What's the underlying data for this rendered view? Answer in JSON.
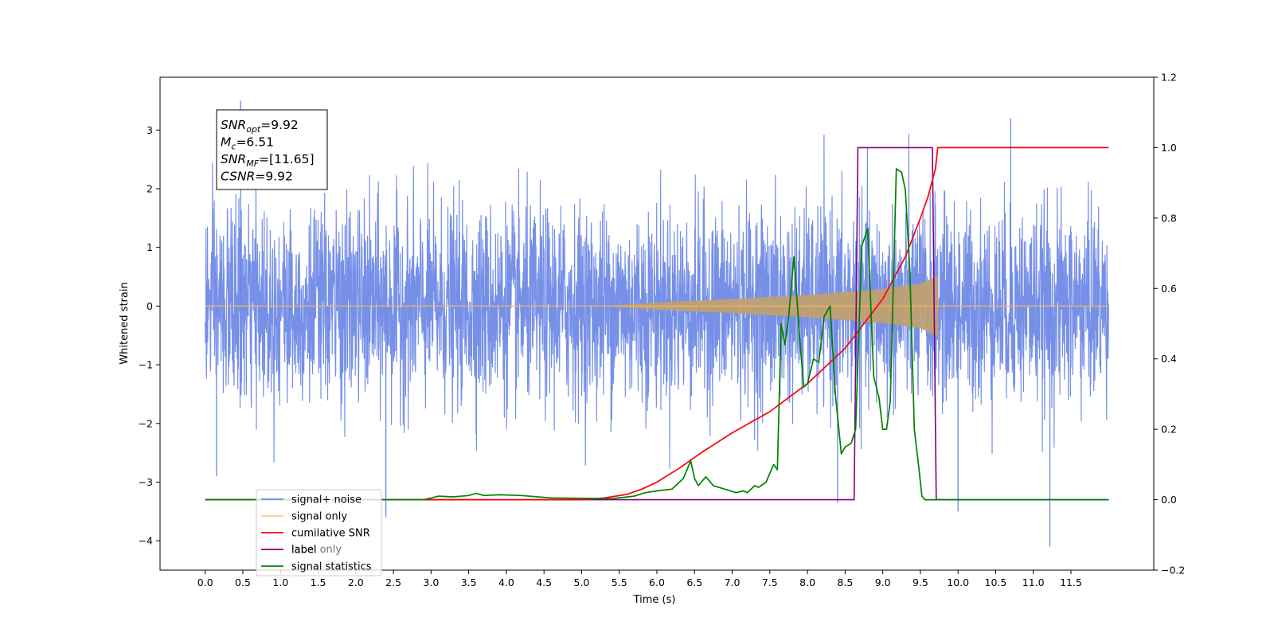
{
  "chart_data": {
    "type": "line",
    "xlabel": "Time (s)",
    "ylabel": "Whitened strain",
    "xlim": [
      -0.6,
      12.6
    ],
    "ylim_left": [
      -4.5,
      3.9
    ],
    "ylim_right": [
      -0.2,
      1.2
    ],
    "x_ticks": [
      "0.0",
      "0.5",
      "1.0",
      "1.5",
      "2.0",
      "2.5",
      "3.0",
      "3.5",
      "4.0",
      "4.5",
      "5.0",
      "5.5",
      "6.0",
      "6.5",
      "7.0",
      "7.5",
      "8.0",
      "8.5",
      "9.0",
      "9.5",
      "10.0",
      "10.5",
      "11.0",
      "11.5"
    ],
    "x_tick_values": [
      0,
      0.5,
      1,
      1.5,
      2,
      2.5,
      3,
      3.5,
      4,
      4.5,
      5,
      5.5,
      6,
      6.5,
      7,
      7.5,
      8,
      8.5,
      9,
      9.5,
      10,
      10.5,
      11,
      11.5
    ],
    "y_left_ticks": [
      3,
      2,
      1,
      0,
      -1,
      -2,
      -3,
      -4
    ],
    "y_left_tick_labels": [
      "3",
      "2",
      "1",
      "0",
      "−1",
      "−2",
      "−3",
      "−4"
    ],
    "y_right_ticks": [
      1.2,
      1.0,
      0.8,
      0.6,
      0.4,
      0.2,
      0.0,
      -0.2
    ],
    "y_right_tick_labels": [
      "1.2",
      "1.0",
      "0.8",
      "0.6",
      "0.4",
      "0.2",
      "0.0",
      "−0.2"
    ],
    "grid": false,
    "legend_position": "lower-left",
    "colors": {
      "signal_noise": "#6a87e6",
      "signal_only": "#f5b85a",
      "signal_only_fill": "#bfa071",
      "cumulative_snr": "#ff0000",
      "label": "#800080",
      "signal_statistics": "#008000"
    },
    "series": [
      {
        "name": "signal+ noise",
        "axis": "left",
        "note": "Gaussian whitened noise, visible amplitude about ±1.5 with spikes up to ~3.5 and down to ~-4.1",
        "x_range": [
          0,
          12.0
        ],
        "spikes": [
          [
            0.47,
            3.5
          ],
          [
            0.15,
            -2.9
          ],
          [
            10.7,
            3.2
          ],
          [
            11.22,
            -4.1
          ],
          [
            8.4,
            -3.35
          ],
          [
            10.0,
            -3.5
          ],
          [
            2.4,
            -3.6
          ]
        ]
      },
      {
        "name": "signal only",
        "axis": "left",
        "note": "chirp; zero until ~5.3 s, envelope grows to ~0.5 at 9.7 s, then drops to 0",
        "envelope": [
          [
            5.3,
            0.0
          ],
          [
            6.0,
            0.06
          ],
          [
            7.0,
            0.12
          ],
          [
            8.0,
            0.19
          ],
          [
            9.0,
            0.29
          ],
          [
            9.5,
            0.38
          ],
          [
            9.73,
            0.52
          ],
          [
            9.74,
            0.0
          ],
          [
            12.0,
            0.0
          ]
        ]
      },
      {
        "name": "cumilative SNR",
        "axis": "right",
        "x": [
          0,
          5.0,
          5.3,
          5.6,
          5.8,
          6.0,
          6.3,
          6.6,
          7.0,
          7.5,
          8.0,
          8.5,
          9.0,
          9.3,
          9.5,
          9.6,
          9.7,
          9.73,
          12.0
        ],
        "y": [
          0.0,
          0.0,
          0.005,
          0.015,
          0.03,
          0.05,
          0.09,
          0.135,
          0.19,
          0.25,
          0.33,
          0.43,
          0.57,
          0.69,
          0.8,
          0.86,
          0.94,
          1.0,
          1.0
        ]
      },
      {
        "name": "label",
        "axis": "right",
        "x": [
          0,
          8.62,
          8.67,
          9.66,
          9.71,
          12.0
        ],
        "y": [
          0,
          0,
          1,
          1,
          0,
          0
        ]
      },
      {
        "name": "signal statistics",
        "axis": "right",
        "x": [
          0,
          2.9,
          3.0,
          3.1,
          3.3,
          3.5,
          3.6,
          3.7,
          3.9,
          4.2,
          4.6,
          5.0,
          5.4,
          5.7,
          5.85,
          6.0,
          6.2,
          6.35,
          6.45,
          6.5,
          6.55,
          6.65,
          6.75,
          6.9,
          7.05,
          7.15,
          7.2,
          7.3,
          7.35,
          7.45,
          7.55,
          7.6,
          7.65,
          7.7,
          7.75,
          7.82,
          7.9,
          7.95,
          8.0,
          8.08,
          8.15,
          8.22,
          8.3,
          8.37,
          8.45,
          8.5,
          8.58,
          8.64,
          8.72,
          8.8,
          8.88,
          8.95,
          9.0,
          9.05,
          9.1,
          9.18,
          9.25,
          9.3,
          9.36,
          9.42,
          9.48,
          9.52,
          9.56,
          9.6,
          9.66,
          9.72,
          9.78,
          9.88,
          12.0
        ],
        "y": [
          0,
          0,
          0.005,
          0.01,
          0.008,
          0.012,
          0.018,
          0.012,
          0.014,
          0.012,
          0.005,
          0.004,
          0.003,
          0.01,
          0.02,
          0.025,
          0.03,
          0.06,
          0.11,
          0.06,
          0.04,
          0.065,
          0.04,
          0.03,
          0.02,
          0.025,
          0.02,
          0.04,
          0.035,
          0.05,
          0.1,
          0.085,
          0.5,
          0.44,
          0.52,
          0.69,
          0.45,
          0.32,
          0.33,
          0.4,
          0.39,
          0.52,
          0.55,
          0.3,
          0.13,
          0.15,
          0.16,
          0.2,
          0.72,
          0.77,
          0.35,
          0.29,
          0.2,
          0.2,
          0.28,
          0.94,
          0.93,
          0.88,
          0.65,
          0.2,
          0.09,
          0.01,
          0.0,
          0.0,
          0.0,
          0.0,
          0.0,
          0.0,
          0.0
        ]
      }
    ],
    "legend": [
      "signal+ noise",
      "signal only",
      "cumilative SNR",
      "label",
      "signal statistics"
    ],
    "legend_hidden_text": "label only",
    "annotation": {
      "lines": [
        {
          "main": "SNR",
          "sub": "opt",
          "rest": "=9.92"
        },
        {
          "main": "M",
          "sub": "c",
          "rest": "=6.51"
        },
        {
          "main": "SNR",
          "sub": "MF",
          "rest": "=[11.65]"
        },
        {
          "main": "CSNR",
          "sub": "",
          "rest": "=9.92"
        }
      ]
    }
  }
}
